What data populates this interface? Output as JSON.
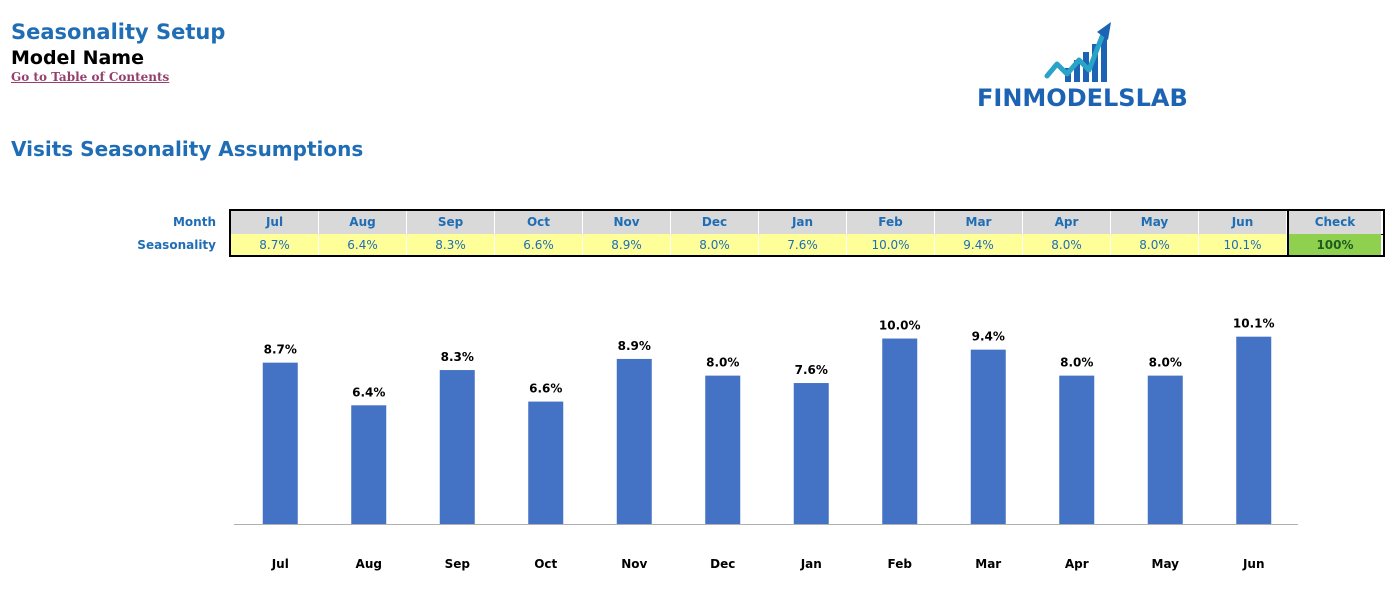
{
  "header": {
    "title": "Seasonality Setup",
    "model_name": "Model Name",
    "toc_link": "Go to Table of Contents"
  },
  "logo": {
    "text": "FINMODELSLAB"
  },
  "section": {
    "title": "Visits Seasonality Assumptions"
  },
  "table": {
    "row_labels": {
      "month": "Month",
      "seasonality": "Seasonality"
    },
    "months": [
      "Jul",
      "Aug",
      "Sep",
      "Oct",
      "Nov",
      "Dec",
      "Jan",
      "Feb",
      "Mar",
      "Apr",
      "May",
      "Jun"
    ],
    "values": [
      "8.7%",
      "6.4%",
      "8.3%",
      "6.6%",
      "8.9%",
      "8.0%",
      "7.6%",
      "10.0%",
      "9.4%",
      "8.0%",
      "8.0%",
      "10.1%"
    ],
    "check_label": "Check",
    "check_value": "100%"
  },
  "colors": {
    "title": "#1f6db5",
    "header_fill": "#d9d9d9",
    "input_fill": "#ffff99",
    "check_fill": "#8fd14f",
    "bar": "#4472c4",
    "link": "#953f6d"
  },
  "chart_data": {
    "type": "bar",
    "categories": [
      "Jul",
      "Aug",
      "Sep",
      "Oct",
      "Nov",
      "Dec",
      "Jan",
      "Feb",
      "Mar",
      "Apr",
      "May",
      "Jun"
    ],
    "values": [
      8.7,
      6.4,
      8.3,
      6.6,
      8.9,
      8.0,
      7.6,
      10.0,
      9.4,
      8.0,
      8.0,
      10.1
    ],
    "data_labels": [
      "8.7%",
      "6.4%",
      "8.3%",
      "6.6%",
      "8.9%",
      "8.0%",
      "7.6%",
      "10.0%",
      "9.4%",
      "8.0%",
      "8.0%",
      "10.1%"
    ],
    "title": "",
    "xlabel": "",
    "ylabel": "",
    "ylim": [
      0,
      11.5
    ],
    "grid": false,
    "legend": "none"
  }
}
